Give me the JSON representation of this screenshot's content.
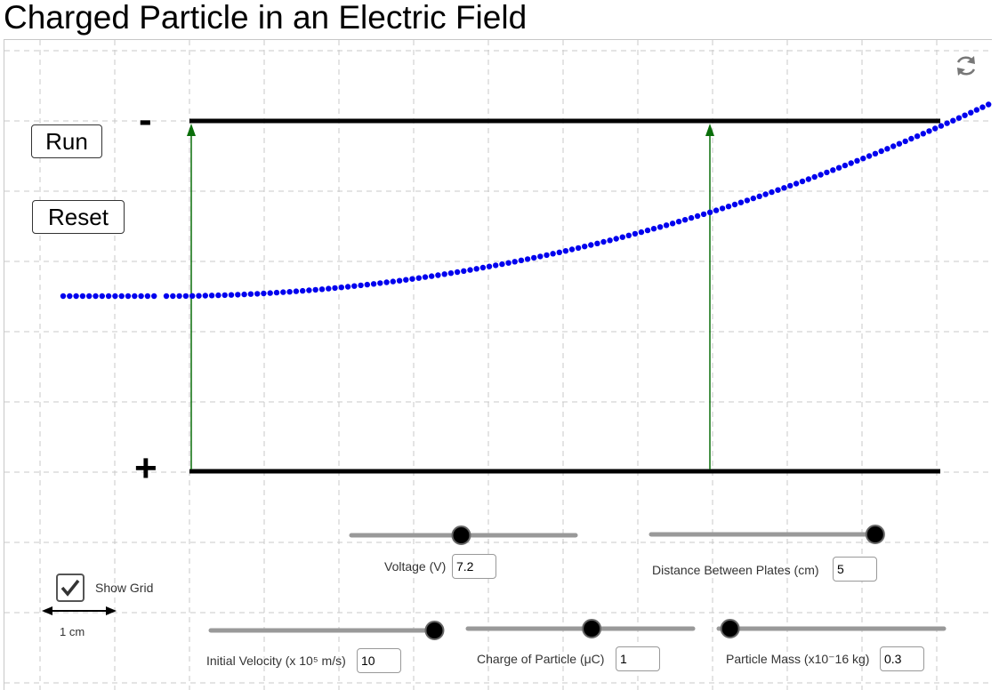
{
  "page": {
    "title": "Charged Particle in an Electric Field"
  },
  "controls": {
    "run_label": "Run",
    "reset_label": "Reset",
    "show_grid_label": "Show Grid",
    "show_grid_checked": true,
    "scale_label": "1 cm"
  },
  "plates": {
    "negative_sign": "-",
    "positive_sign": "+"
  },
  "sliders": {
    "voltage": {
      "label": "Voltage (V)",
      "value": "7.2",
      "fraction": 0.49
    },
    "distance": {
      "label": "Distance Between Plates (cm)",
      "value": "5",
      "fraction": 0.98
    },
    "velocity": {
      "label": "Initial Velocity (x 10⁵ m/s)",
      "value": "10",
      "fraction": 0.99
    },
    "charge": {
      "label": "Charge of Particle (μC)",
      "value": "1",
      "fraction": 0.55
    },
    "mass": {
      "label": "Particle Mass (x10⁻16 kg)",
      "value": "0.3",
      "fraction": 0.05
    }
  },
  "icons": {
    "reload": "reload-icon",
    "check": "check-icon",
    "scale_arrow": "double-arrow-icon"
  },
  "colors": {
    "trajectory": "#0000ee",
    "field_arrows": "#0a6e0a",
    "plates": "#000000",
    "grid": "#c8c8c8",
    "slider_track": "#999999",
    "slider_knob": "#000000"
  }
}
